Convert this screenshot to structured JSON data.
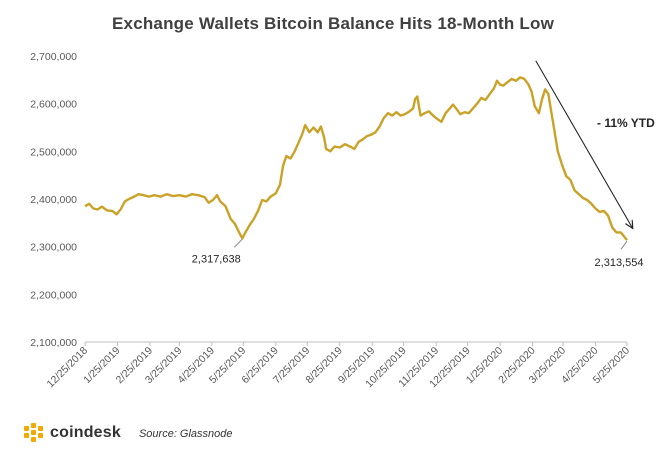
{
  "chart_data": {
    "type": "line",
    "title": "Exchange Wallets Bitcoin Balance Hits 18-Month Low",
    "xlabel": "",
    "ylabel": "",
    "ylim": [
      2100000,
      2700000
    ],
    "yticks": [
      "2,700,000",
      "2,600,000",
      "2,500,000",
      "2,400,000",
      "2,300,000",
      "2,200,000",
      "2,100,000"
    ],
    "xticks": [
      "12/25/2018",
      "1/25/2019",
      "2/25/2019",
      "3/25/2019",
      "4/25/2019",
      "5/25/2019",
      "6/25/2019",
      "7/25/2019",
      "8/25/2019",
      "9/25/2019",
      "10/25/2019",
      "11/25/2019",
      "12/25/2019",
      "1/25/2020",
      "2/25/2020",
      "3/25/2020",
      "4/25/2020",
      "5/25/2020"
    ],
    "series": [
      {
        "color": "#c9a227",
        "points": [
          [
            "2018-12-25",
            2385000
          ],
          [
            "2018-12-29",
            2390000
          ],
          [
            "2019-01-02",
            2380000
          ],
          [
            "2019-01-06",
            2378000
          ],
          [
            "2019-01-10",
            2384000
          ],
          [
            "2019-01-15",
            2376000
          ],
          [
            "2019-01-20",
            2375000
          ],
          [
            "2019-01-24",
            2368000
          ],
          [
            "2019-01-28",
            2378000
          ],
          [
            "2019-02-01",
            2395000
          ],
          [
            "2019-02-05",
            2400000
          ],
          [
            "2019-02-10",
            2405000
          ],
          [
            "2019-02-14",
            2410000
          ],
          [
            "2019-02-19",
            2408000
          ],
          [
            "2019-02-24",
            2405000
          ],
          [
            "2019-03-01",
            2408000
          ],
          [
            "2019-03-07",
            2405000
          ],
          [
            "2019-03-13",
            2410000
          ],
          [
            "2019-03-19",
            2406000
          ],
          [
            "2019-03-25",
            2408000
          ],
          [
            "2019-03-31",
            2405000
          ],
          [
            "2019-04-06",
            2410000
          ],
          [
            "2019-04-12",
            2408000
          ],
          [
            "2019-04-18",
            2404000
          ],
          [
            "2019-04-22",
            2392000
          ],
          [
            "2019-04-26",
            2398000
          ],
          [
            "2019-04-30",
            2408000
          ],
          [
            "2019-05-03",
            2395000
          ],
          [
            "2019-05-08",
            2385000
          ],
          [
            "2019-05-13",
            2358000
          ],
          [
            "2019-05-17",
            2348000
          ],
          [
            "2019-05-21",
            2330000
          ],
          [
            "2019-05-24",
            2317638
          ],
          [
            "2019-05-27",
            2330000
          ],
          [
            "2019-05-31",
            2345000
          ],
          [
            "2019-06-04",
            2358000
          ],
          [
            "2019-06-08",
            2375000
          ],
          [
            "2019-06-12",
            2398000
          ],
          [
            "2019-06-16",
            2395000
          ],
          [
            "2019-06-20",
            2405000
          ],
          [
            "2019-06-25",
            2412000
          ],
          [
            "2019-06-29",
            2430000
          ],
          [
            "2019-07-02",
            2470000
          ],
          [
            "2019-07-05",
            2490000
          ],
          [
            "2019-07-09",
            2485000
          ],
          [
            "2019-07-13",
            2500000
          ],
          [
            "2019-07-17",
            2520000
          ],
          [
            "2019-07-20",
            2535000
          ],
          [
            "2019-07-23",
            2555000
          ],
          [
            "2019-07-27",
            2540000
          ],
          [
            "2019-07-31",
            2550000
          ],
          [
            "2019-08-04",
            2540000
          ],
          [
            "2019-08-07",
            2552000
          ],
          [
            "2019-08-10",
            2530000
          ],
          [
            "2019-08-12",
            2505000
          ],
          [
            "2019-08-16",
            2500000
          ],
          [
            "2019-08-20",
            2510000
          ],
          [
            "2019-08-25",
            2508000
          ],
          [
            "2019-08-30",
            2515000
          ],
          [
            "2019-09-04",
            2510000
          ],
          [
            "2019-09-08",
            2505000
          ],
          [
            "2019-09-12",
            2520000
          ],
          [
            "2019-09-16",
            2525000
          ],
          [
            "2019-09-20",
            2532000
          ],
          [
            "2019-09-24",
            2535000
          ],
          [
            "2019-09-28",
            2540000
          ],
          [
            "2019-10-02",
            2552000
          ],
          [
            "2019-10-06",
            2570000
          ],
          [
            "2019-10-10",
            2580000
          ],
          [
            "2019-10-14",
            2575000
          ],
          [
            "2019-10-18",
            2582000
          ],
          [
            "2019-10-22",
            2575000
          ],
          [
            "2019-10-26",
            2578000
          ],
          [
            "2019-10-30",
            2583000
          ],
          [
            "2019-11-03",
            2590000
          ],
          [
            "2019-11-05",
            2610000
          ],
          [
            "2019-11-07",
            2615000
          ],
          [
            "2019-11-10",
            2575000
          ],
          [
            "2019-11-14",
            2580000
          ],
          [
            "2019-11-18",
            2584000
          ],
          [
            "2019-11-22",
            2575000
          ],
          [
            "2019-11-26",
            2568000
          ],
          [
            "2019-11-30",
            2562000
          ],
          [
            "2019-12-04",
            2580000
          ],
          [
            "2019-12-08",
            2590000
          ],
          [
            "2019-12-11",
            2598000
          ],
          [
            "2019-12-14",
            2590000
          ],
          [
            "2019-12-18",
            2578000
          ],
          [
            "2019-12-22",
            2582000
          ],
          [
            "2019-12-26",
            2580000
          ],
          [
            "2019-12-30",
            2590000
          ],
          [
            "2020-01-03",
            2600000
          ],
          [
            "2020-01-07",
            2612000
          ],
          [
            "2020-01-11",
            2608000
          ],
          [
            "2020-01-15",
            2620000
          ],
          [
            "2020-01-19",
            2632000
          ],
          [
            "2020-01-22",
            2648000
          ],
          [
            "2020-01-25",
            2640000
          ],
          [
            "2020-01-28",
            2638000
          ],
          [
            "2020-02-01",
            2645000
          ],
          [
            "2020-02-05",
            2652000
          ],
          [
            "2020-02-09",
            2648000
          ],
          [
            "2020-02-13",
            2655000
          ],
          [
            "2020-02-17",
            2652000
          ],
          [
            "2020-02-21",
            2640000
          ],
          [
            "2020-02-24",
            2625000
          ],
          [
            "2020-02-27",
            2595000
          ],
          [
            "2020-03-02",
            2580000
          ],
          [
            "2020-03-05",
            2610000
          ],
          [
            "2020-03-08",
            2630000
          ],
          [
            "2020-03-11",
            2620000
          ],
          [
            "2020-03-14",
            2580000
          ],
          [
            "2020-03-17",
            2540000
          ],
          [
            "2020-03-20",
            2500000
          ],
          [
            "2020-03-24",
            2472000
          ],
          [
            "2020-03-28",
            2448000
          ],
          [
            "2020-04-01",
            2440000
          ],
          [
            "2020-04-05",
            2418000
          ],
          [
            "2020-04-09",
            2410000
          ],
          [
            "2020-04-13",
            2402000
          ],
          [
            "2020-04-17",
            2398000
          ],
          [
            "2020-04-21",
            2390000
          ],
          [
            "2020-04-25",
            2380000
          ],
          [
            "2020-04-29",
            2373000
          ],
          [
            "2020-05-03",
            2375000
          ],
          [
            "2020-05-07",
            2365000
          ],
          [
            "2020-05-11",
            2340000
          ],
          [
            "2020-05-15",
            2330000
          ],
          [
            "2020-05-19",
            2330000
          ],
          [
            "2020-05-22",
            2322000
          ],
          [
            "2020-05-25",
            2313554
          ]
        ]
      }
    ],
    "annotations": [
      {
        "text": "2,317,638",
        "date": "2019-05-24",
        "value": 2317638
      },
      {
        "text": "2,313,554",
        "date": "2020-05-25",
        "value": 2313554
      }
    ],
    "trend_arrow": {
      "label": "- 11% YTD",
      "from": [
        "2020-02-28",
        2690000
      ],
      "to": [
        "2020-05-30",
        2340000
      ]
    },
    "grid": false,
    "legend": "none"
  },
  "footer": {
    "brand": "coindesk",
    "source": "Source: Glassnode"
  },
  "colors": {
    "line": "#c9a227",
    "logo": "#f2a900",
    "axis": "#bfbfbf"
  }
}
